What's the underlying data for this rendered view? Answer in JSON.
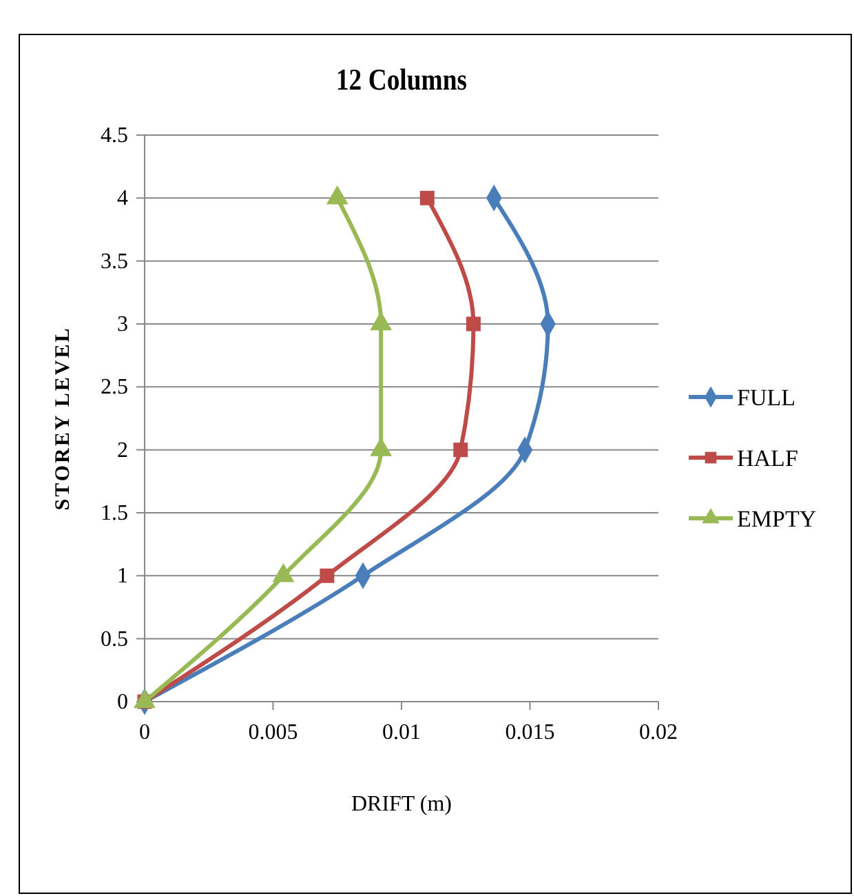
{
  "chart_data": {
    "type": "line",
    "title": "12 Columns",
    "xlabel": "DRIFT (m)",
    "ylabel": "STOREY LEVEL",
    "xlim": [
      0,
      0.02
    ],
    "xticks": [
      0,
      0.005,
      0.01,
      0.015,
      0.02
    ],
    "ylim": [
      0,
      4.5
    ],
    "yticks": [
      0,
      0.5,
      1,
      1.5,
      2,
      2.5,
      3,
      3.5,
      4,
      4.5
    ],
    "grid": "y",
    "legend": "right",
    "series": [
      {
        "name": "FULL",
        "color": "#4a7ebb",
        "marker": "diamond",
        "x": [
          0,
          0.0085,
          0.0148,
          0.0157,
          0.0136
        ],
        "values": [
          0,
          1,
          2,
          3,
          4
        ]
      },
      {
        "name": "HALF",
        "color": "#be4b48",
        "marker": "square",
        "x": [
          0,
          0.0071,
          0.0123,
          0.0128,
          0.011
        ],
        "values": [
          0,
          1,
          2,
          3,
          4
        ]
      },
      {
        "name": "EMPTY",
        "color": "#98b954",
        "marker": "triangle",
        "x": [
          0,
          0.0054,
          0.0092,
          0.0092,
          0.0075
        ],
        "values": [
          0,
          1,
          2,
          3,
          4
        ]
      }
    ]
  }
}
